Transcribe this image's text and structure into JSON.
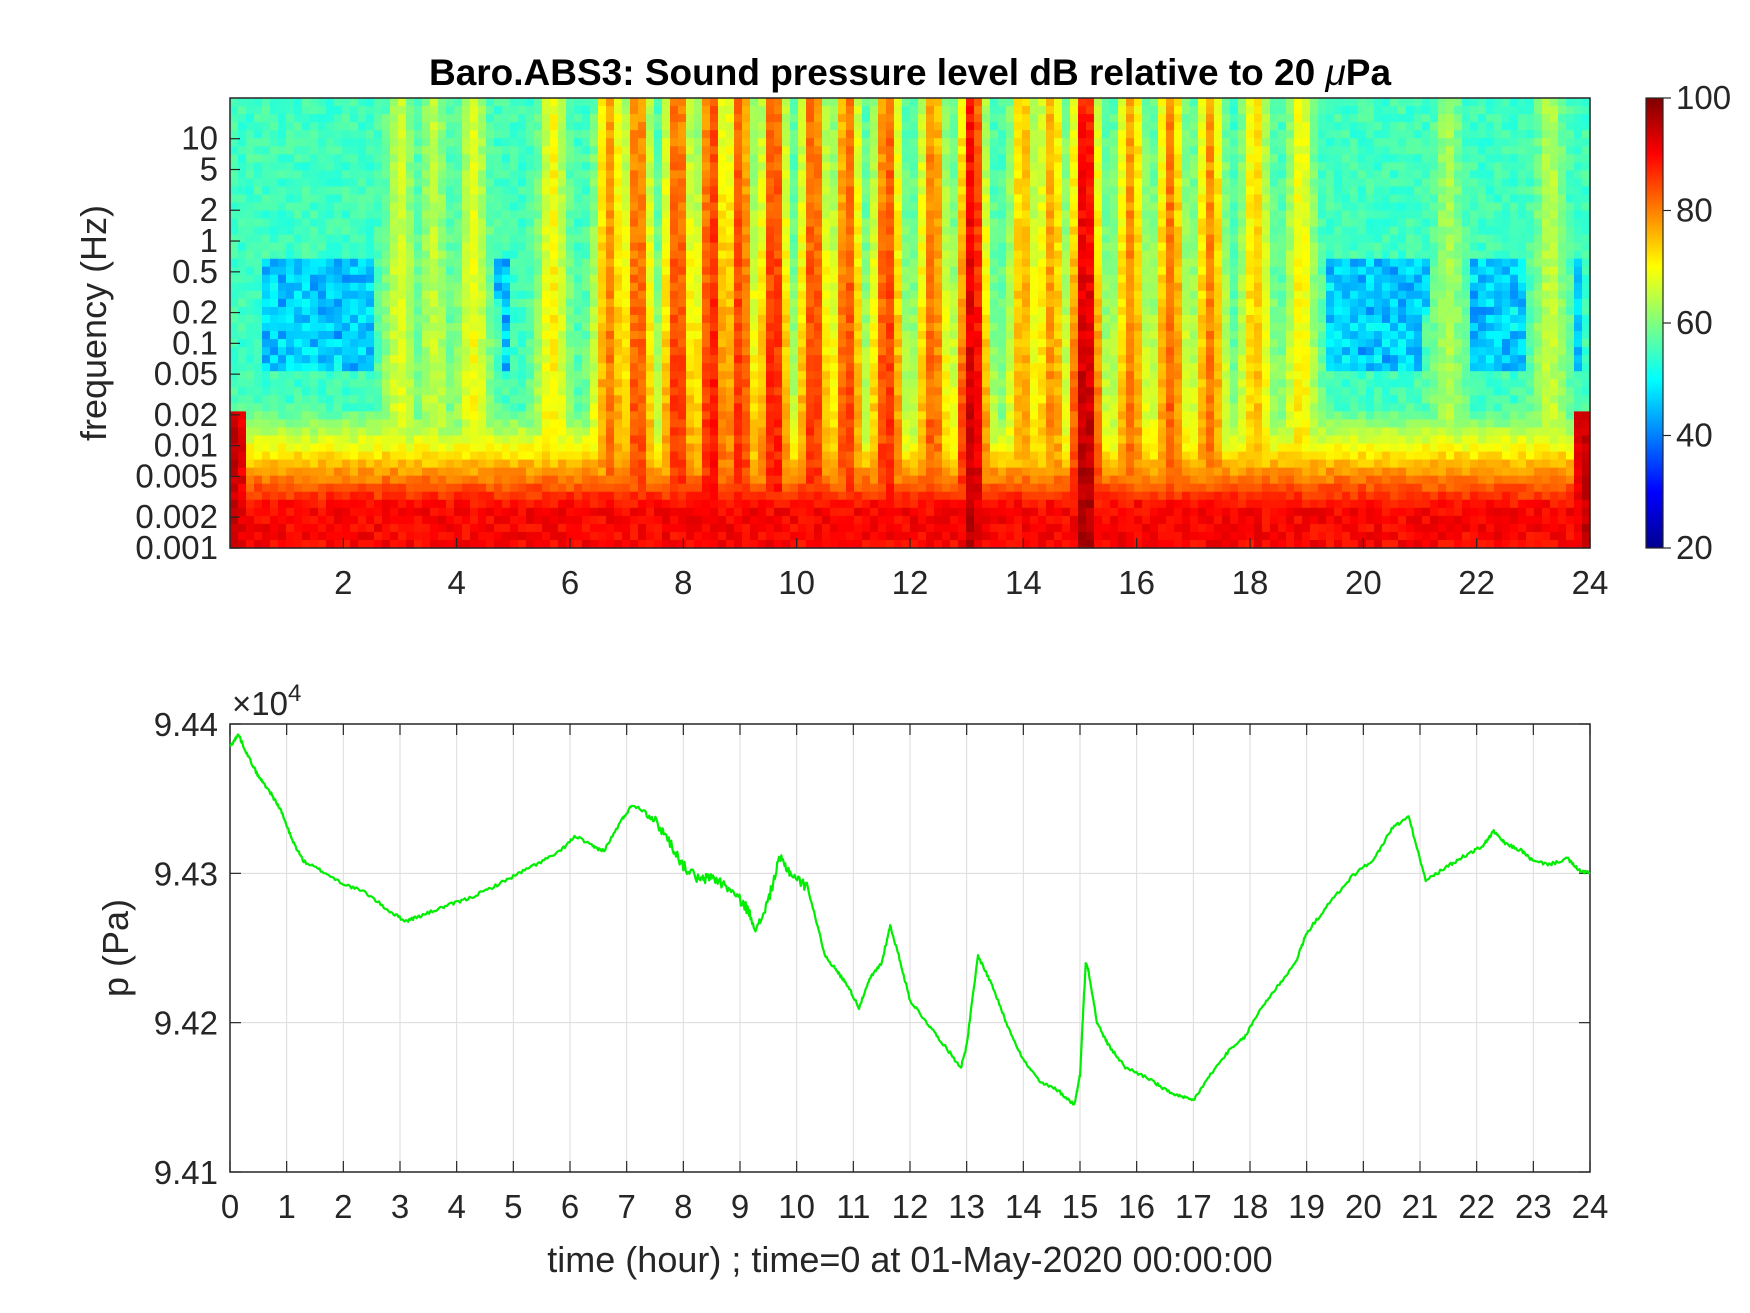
{
  "chart_data": [
    {
      "type": "heatmap",
      "title": "Baro.ABS3: Sound pressure level dB relative to 20 μPa",
      "title_parts": {
        "prefix": "Baro.ABS3: Sound pressure level dB relative to 20 ",
        "mu": "μ",
        "suffix": "Pa"
      },
      "ylabel": "frequency (Hz)",
      "y_scale": "log",
      "ylim": [
        0.001,
        25
      ],
      "xlim": [
        0,
        24
      ],
      "x_ticks": [
        2,
        4,
        6,
        8,
        10,
        12,
        14,
        16,
        18,
        20,
        22,
        24
      ],
      "y_ticks": [
        0.001,
        0.002,
        0.005,
        0.01,
        0.02,
        0.05,
        0.1,
        0.2,
        0.5,
        1,
        2,
        5,
        10
      ],
      "y_tick_labels": [
        "0.001",
        "0.002",
        "0.005",
        "0.01",
        "0.02",
        "0.05",
        "0.1",
        "0.2",
        "0.5",
        "1",
        "2",
        "5",
        "10"
      ],
      "colormap": "jet",
      "colorbar": {
        "range": [
          20,
          100
        ],
        "ticks": [
          20,
          40,
          60,
          80,
          100
        ]
      },
      "background_db": 55,
      "low_freq_db": 90,
      "bursts": [
        {
          "t": 3.0,
          "db": 68
        },
        {
          "t": 3.6,
          "db": 66
        },
        {
          "t": 4.3,
          "db": 70
        },
        {
          "t": 5.7,
          "db": 72
        },
        {
          "t": 6.7,
          "db": 82
        },
        {
          "t": 7.2,
          "db": 86
        },
        {
          "t": 7.9,
          "db": 88
        },
        {
          "t": 8.5,
          "db": 90
        },
        {
          "t": 9.0,
          "db": 88
        },
        {
          "t": 9.6,
          "db": 90
        },
        {
          "t": 10.3,
          "db": 88
        },
        {
          "t": 10.9,
          "db": 86
        },
        {
          "t": 11.6,
          "db": 88
        },
        {
          "t": 12.4,
          "db": 84
        },
        {
          "t": 13.1,
          "db": 96
        },
        {
          "t": 14.0,
          "db": 78
        },
        {
          "t": 14.5,
          "db": 80
        },
        {
          "t": 15.1,
          "db": 98
        },
        {
          "t": 15.9,
          "db": 82
        },
        {
          "t": 16.6,
          "db": 84
        },
        {
          "t": 17.3,
          "db": 82
        },
        {
          "t": 18.1,
          "db": 76
        },
        {
          "t": 18.9,
          "db": 72
        },
        {
          "t": 21.5,
          "db": 64
        },
        {
          "t": 23.3,
          "db": 66
        }
      ],
      "quiet_band": {
        "freq_range": [
          0.05,
          0.7
        ],
        "db": 42,
        "periods": [
          [
            0.5,
            5.0
          ],
          [
            19.2,
            23.8
          ]
        ]
      }
    },
    {
      "type": "line",
      "ylabel": "p (Pa)",
      "xlabel": "time (hour) ; time=0 at 01-May-2020 00:00:00",
      "y_exponent": {
        "base": "×10",
        "exp": "4"
      },
      "xlim": [
        0,
        24
      ],
      "ylim": [
        94100,
        94400
      ],
      "x_ticks": [
        0,
        1,
        2,
        3,
        4,
        5,
        6,
        7,
        8,
        9,
        10,
        11,
        12,
        13,
        14,
        15,
        16,
        17,
        18,
        19,
        20,
        21,
        22,
        23,
        24
      ],
      "y_ticks": [
        94100,
        94200,
        94300,
        94400
      ],
      "y_tick_labels": [
        "9.41",
        "9.42",
        "9.43",
        "9.44"
      ],
      "grid": true,
      "series": [
        {
          "color": "#00ee00",
          "x": [
            0,
            0.15,
            0.3,
            0.5,
            0.7,
            0.9,
            1.1,
            1.3,
            1.6,
            2.0,
            2.4,
            2.8,
            3.1,
            3.4,
            3.8,
            4.2,
            4.6,
            5.0,
            5.4,
            5.8,
            6.1,
            6.4,
            6.6,
            6.9,
            7.1,
            7.4,
            7.7,
            8.0,
            8.3,
            8.5,
            8.8,
            9.1,
            9.3,
            9.5,
            9.7,
            9.9,
            10.2,
            10.5,
            10.7,
            10.9,
            11.1,
            11.3,
            11.5,
            11.65,
            11.8,
            12.0,
            12.3,
            12.6,
            12.9,
            13.0,
            13.2,
            13.45,
            13.7,
            14.0,
            14.3,
            14.6,
            14.9,
            15.0,
            15.1,
            15.15,
            15.3,
            15.5,
            15.8,
            16.2,
            16.5,
            16.8,
            17.0,
            17.3,
            17.6,
            17.9,
            18.2,
            18.5,
            18.8,
            19.0,
            19.4,
            19.8,
            20.2,
            20.5,
            20.8,
            21.1,
            21.5,
            21.8,
            22.1,
            22.3,
            22.5,
            22.8,
            23.0,
            23.3,
            23.6,
            23.8,
            24.0
          ],
          "y": [
            94385,
            94393,
            94380,
            94365,
            94355,
            94342,
            94322,
            94308,
            94302,
            94293,
            94287,
            94275,
            94268,
            94272,
            94278,
            94283,
            94290,
            94298,
            94306,
            94314,
            94325,
            94318,
            94315,
            94335,
            94346,
            94340,
            94325,
            94305,
            94295,
            94298,
            94290,
            94278,
            94262,
            94282,
            94310,
            94300,
            94290,
            94245,
            94235,
            94225,
            94210,
            94230,
            94240,
            94265,
            94245,
            94215,
            94200,
            94185,
            94170,
            94185,
            94245,
            94225,
            94200,
            94175,
            94160,
            94155,
            94145,
            94165,
            94240,
            94235,
            94200,
            94185,
            94170,
            94163,
            94155,
            94150,
            94148,
            94165,
            94180,
            94190,
            94210,
            94225,
            94240,
            94260,
            94280,
            94298,
            94310,
            94330,
            94338,
            94295,
            94305,
            94312,
            94318,
            94328,
            94320,
            94315,
            94308,
            94306,
            94310,
            94302,
            94300
          ]
        }
      ]
    }
  ]
}
